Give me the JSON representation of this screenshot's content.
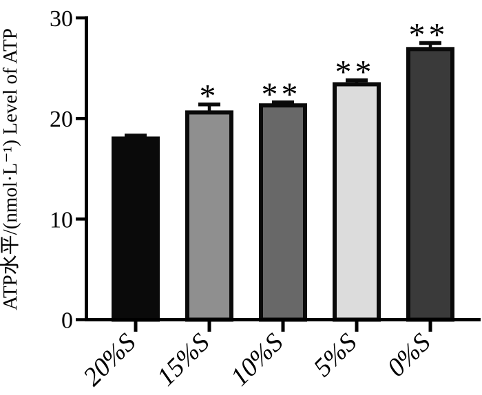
{
  "figure": {
    "background_color": "#ffffff",
    "description": "Grayscale bar chart of ATP level versus serum concentration groups with error bars and significance asterisks"
  },
  "chart_data": {
    "type": "bar",
    "title": "",
    "categories": [
      "20%S",
      "15%S",
      "10%S",
      "5%S",
      "0%S"
    ],
    "values": [
      18.0,
      20.6,
      21.3,
      23.4,
      26.9
    ],
    "errors": [
      0.3,
      0.8,
      0.3,
      0.4,
      0.6
    ],
    "significance": [
      "",
      "*",
      "**",
      "**",
      "**"
    ],
    "bar_colors": [
      "#0a0a0a",
      "#8f8f8f",
      "#686868",
      "#dcdcdc",
      "#3a3a3a"
    ],
    "bar_border_color": "#0a0a0a",
    "error_bar_color": "#0a0a0a",
    "axis_color": "#000000",
    "ylabel": "ATP水平/(nmol·L⁻¹) Level of ATP",
    "xlabel": "",
    "yticks": [
      0,
      10,
      20,
      30
    ],
    "ylim": [
      0,
      30
    ],
    "grid": false,
    "legend": null
  }
}
